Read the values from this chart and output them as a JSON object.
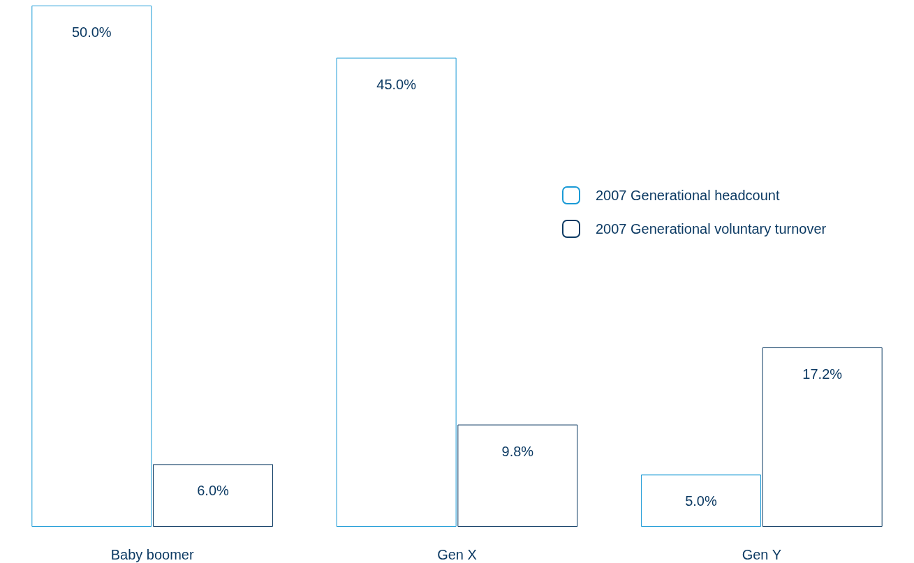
{
  "chart_data": {
    "type": "bar",
    "categories": [
      "Baby boomer",
      "Gen X",
      "Gen Y"
    ],
    "series": [
      {
        "name": "2007 Generational headcount",
        "color": "#1a9ad6",
        "values": [
          50.0,
          45.0,
          5.0
        ],
        "value_labels": [
          "50.0%",
          "45.0%",
          "5.0%"
        ]
      },
      {
        "name": "2007 Generational voluntary turnover",
        "color": "#0c3a63",
        "values": [
          6.0,
          9.8,
          17.2
        ],
        "value_labels": [
          "6.0%",
          "9.8%",
          "17.2%"
        ]
      }
    ],
    "legend": "right"
  }
}
